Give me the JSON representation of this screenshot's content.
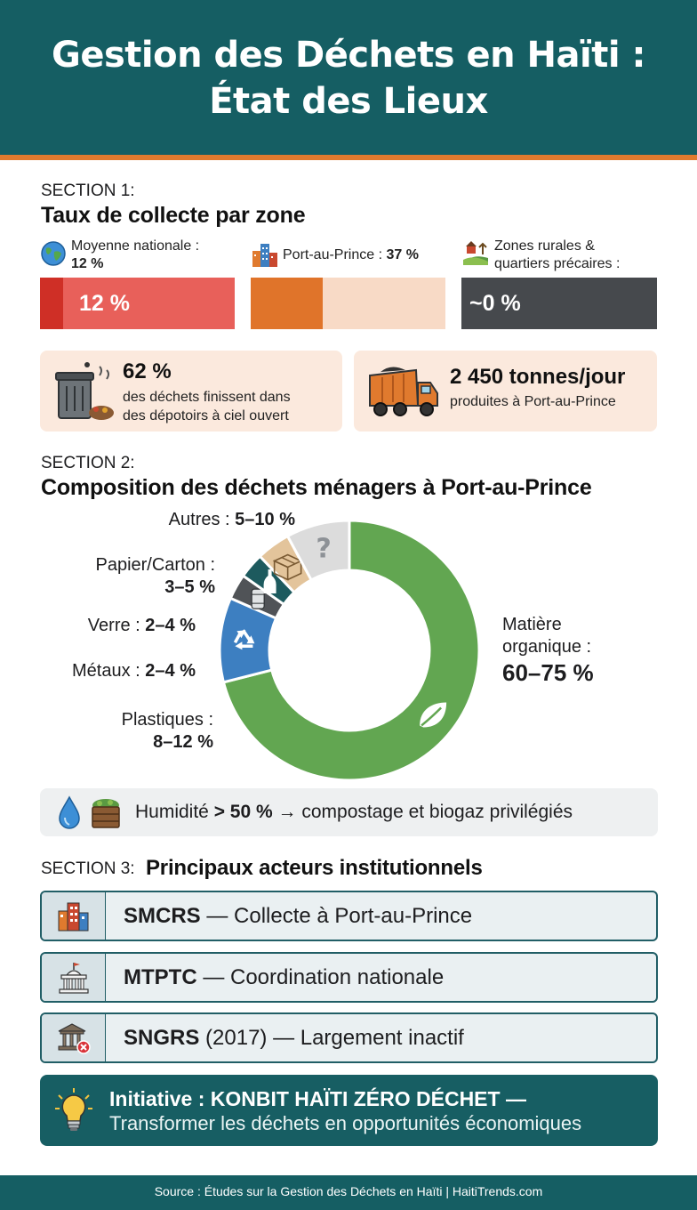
{
  "header": {
    "title_line1": "Gestion des Déchets en Haïti :",
    "title_line2": "État des Lieux"
  },
  "colors": {
    "header_teal": "#155e63",
    "accent_orange": "#e07a2e",
    "red_bar": "#e0443a",
    "orange_bar": "#e0742a",
    "dark_bar": "#46494d",
    "organic_green": "#62a651",
    "plastic_blue": "#3d7fc1",
    "card_peach": "#fbe9dd"
  },
  "section1": {
    "label": "SECTION 1:",
    "title": "Taux de collecte par zone",
    "metrics": [
      {
        "label": "Moyenne nationale :",
        "value": "12 %",
        "bar_text": "12 %",
        "fill_fraction": 0.12,
        "icon": "globe-icon"
      },
      {
        "label": "Port-au-Prince :",
        "value": "37 %",
        "bar_text": "",
        "fill_fraction": 0.37,
        "icon": "city-icon"
      },
      {
        "label_line1": "Zones rurales &",
        "label_line2": "quartiers précaires :",
        "value": "~0 %",
        "bar_text": "~0 %",
        "fill_fraction": 0.0,
        "icon": "rural-icon"
      }
    ],
    "stats": [
      {
        "big": "62 %",
        "line1": "des déchets finissent dans",
        "line2": "des dépotoirs à ciel ouvert",
        "icon": "trash-can-icon"
      },
      {
        "big": "2 450 tonnes/jour",
        "line1": "produites à Port-au-Prince",
        "icon": "garbage-truck-icon"
      }
    ]
  },
  "section2": {
    "label": "SECTION 2:",
    "title": "Composition des déchets ménagers à Port-au-Prince",
    "humidity": {
      "prefix": "Humidité ",
      "value": "> 50 %",
      "suffix": " → compostage et biogaz privilégiés"
    }
  },
  "chart_data": {
    "type": "pie",
    "donut": true,
    "title": "Composition des déchets ménagers à Port-au-Prince",
    "slices": [
      {
        "name": "Matière organique",
        "range": "60–75 %",
        "value": 67.5,
        "color": "#62a651",
        "icon": "leaf-icon"
      },
      {
        "name": "Plastiques",
        "range": "8–12 %",
        "value": 10,
        "color": "#3d7fc1",
        "icon": "recycle-icon"
      },
      {
        "name": "Métaux",
        "range": "2–4 %",
        "value": 3,
        "color": "#505357",
        "icon": "can-icon"
      },
      {
        "name": "Verre",
        "range": "2–4 %",
        "value": 3,
        "color": "#1d5a5e",
        "icon": "bottle-icon"
      },
      {
        "name": "Papier/Carton",
        "range": "3–5 %",
        "value": 4,
        "color": "#e3c49b",
        "icon": "box-icon"
      },
      {
        "name": "Autres",
        "range": "5–10 %",
        "value": 7.5,
        "color": "#dcdcdc",
        "icon": "question-icon"
      }
    ],
    "labels": {
      "organic_l1": "Matière",
      "organic_l2": "organique :",
      "organic_v": "60–75 %",
      "plastic_l1": "Plastiques :",
      "plastic_v": "8–12 %",
      "metal_l": "Métaux : ",
      "metal_v": "2–4 %",
      "glass_l": "Verre : ",
      "glass_v": "2–4 %",
      "paper_l1": "Papier/Carton :",
      "paper_v": "3–5 %",
      "other_l": "Autres : ",
      "other_v": "5–10 %"
    }
  },
  "section3": {
    "label": "SECTION 3:",
    "title": "Principaux acteurs institutionnels",
    "actors": [
      {
        "acronym": "SMCRS",
        "rest": " — Collecte à Port-au-Prince",
        "icon": "buildings-icon"
      },
      {
        "acronym": "MTPTC",
        "rest": " — Coordination nationale",
        "icon": "government-building-icon"
      },
      {
        "acronym": "SNGRS",
        "rest": " (2017) — Largement inactif",
        "icon": "inactive-institution-icon"
      }
    ],
    "initiative": {
      "line1": "Initiative : KONBIT HAÏTI ZÉRO DÉCHET —",
      "line2": "Transformer les déchets en opportunités économiques",
      "icon": "lightbulb-icon"
    }
  },
  "footer": {
    "source": "Source : Études sur la Gestion des Déchets en Haïti | HaitiTrends.com"
  }
}
